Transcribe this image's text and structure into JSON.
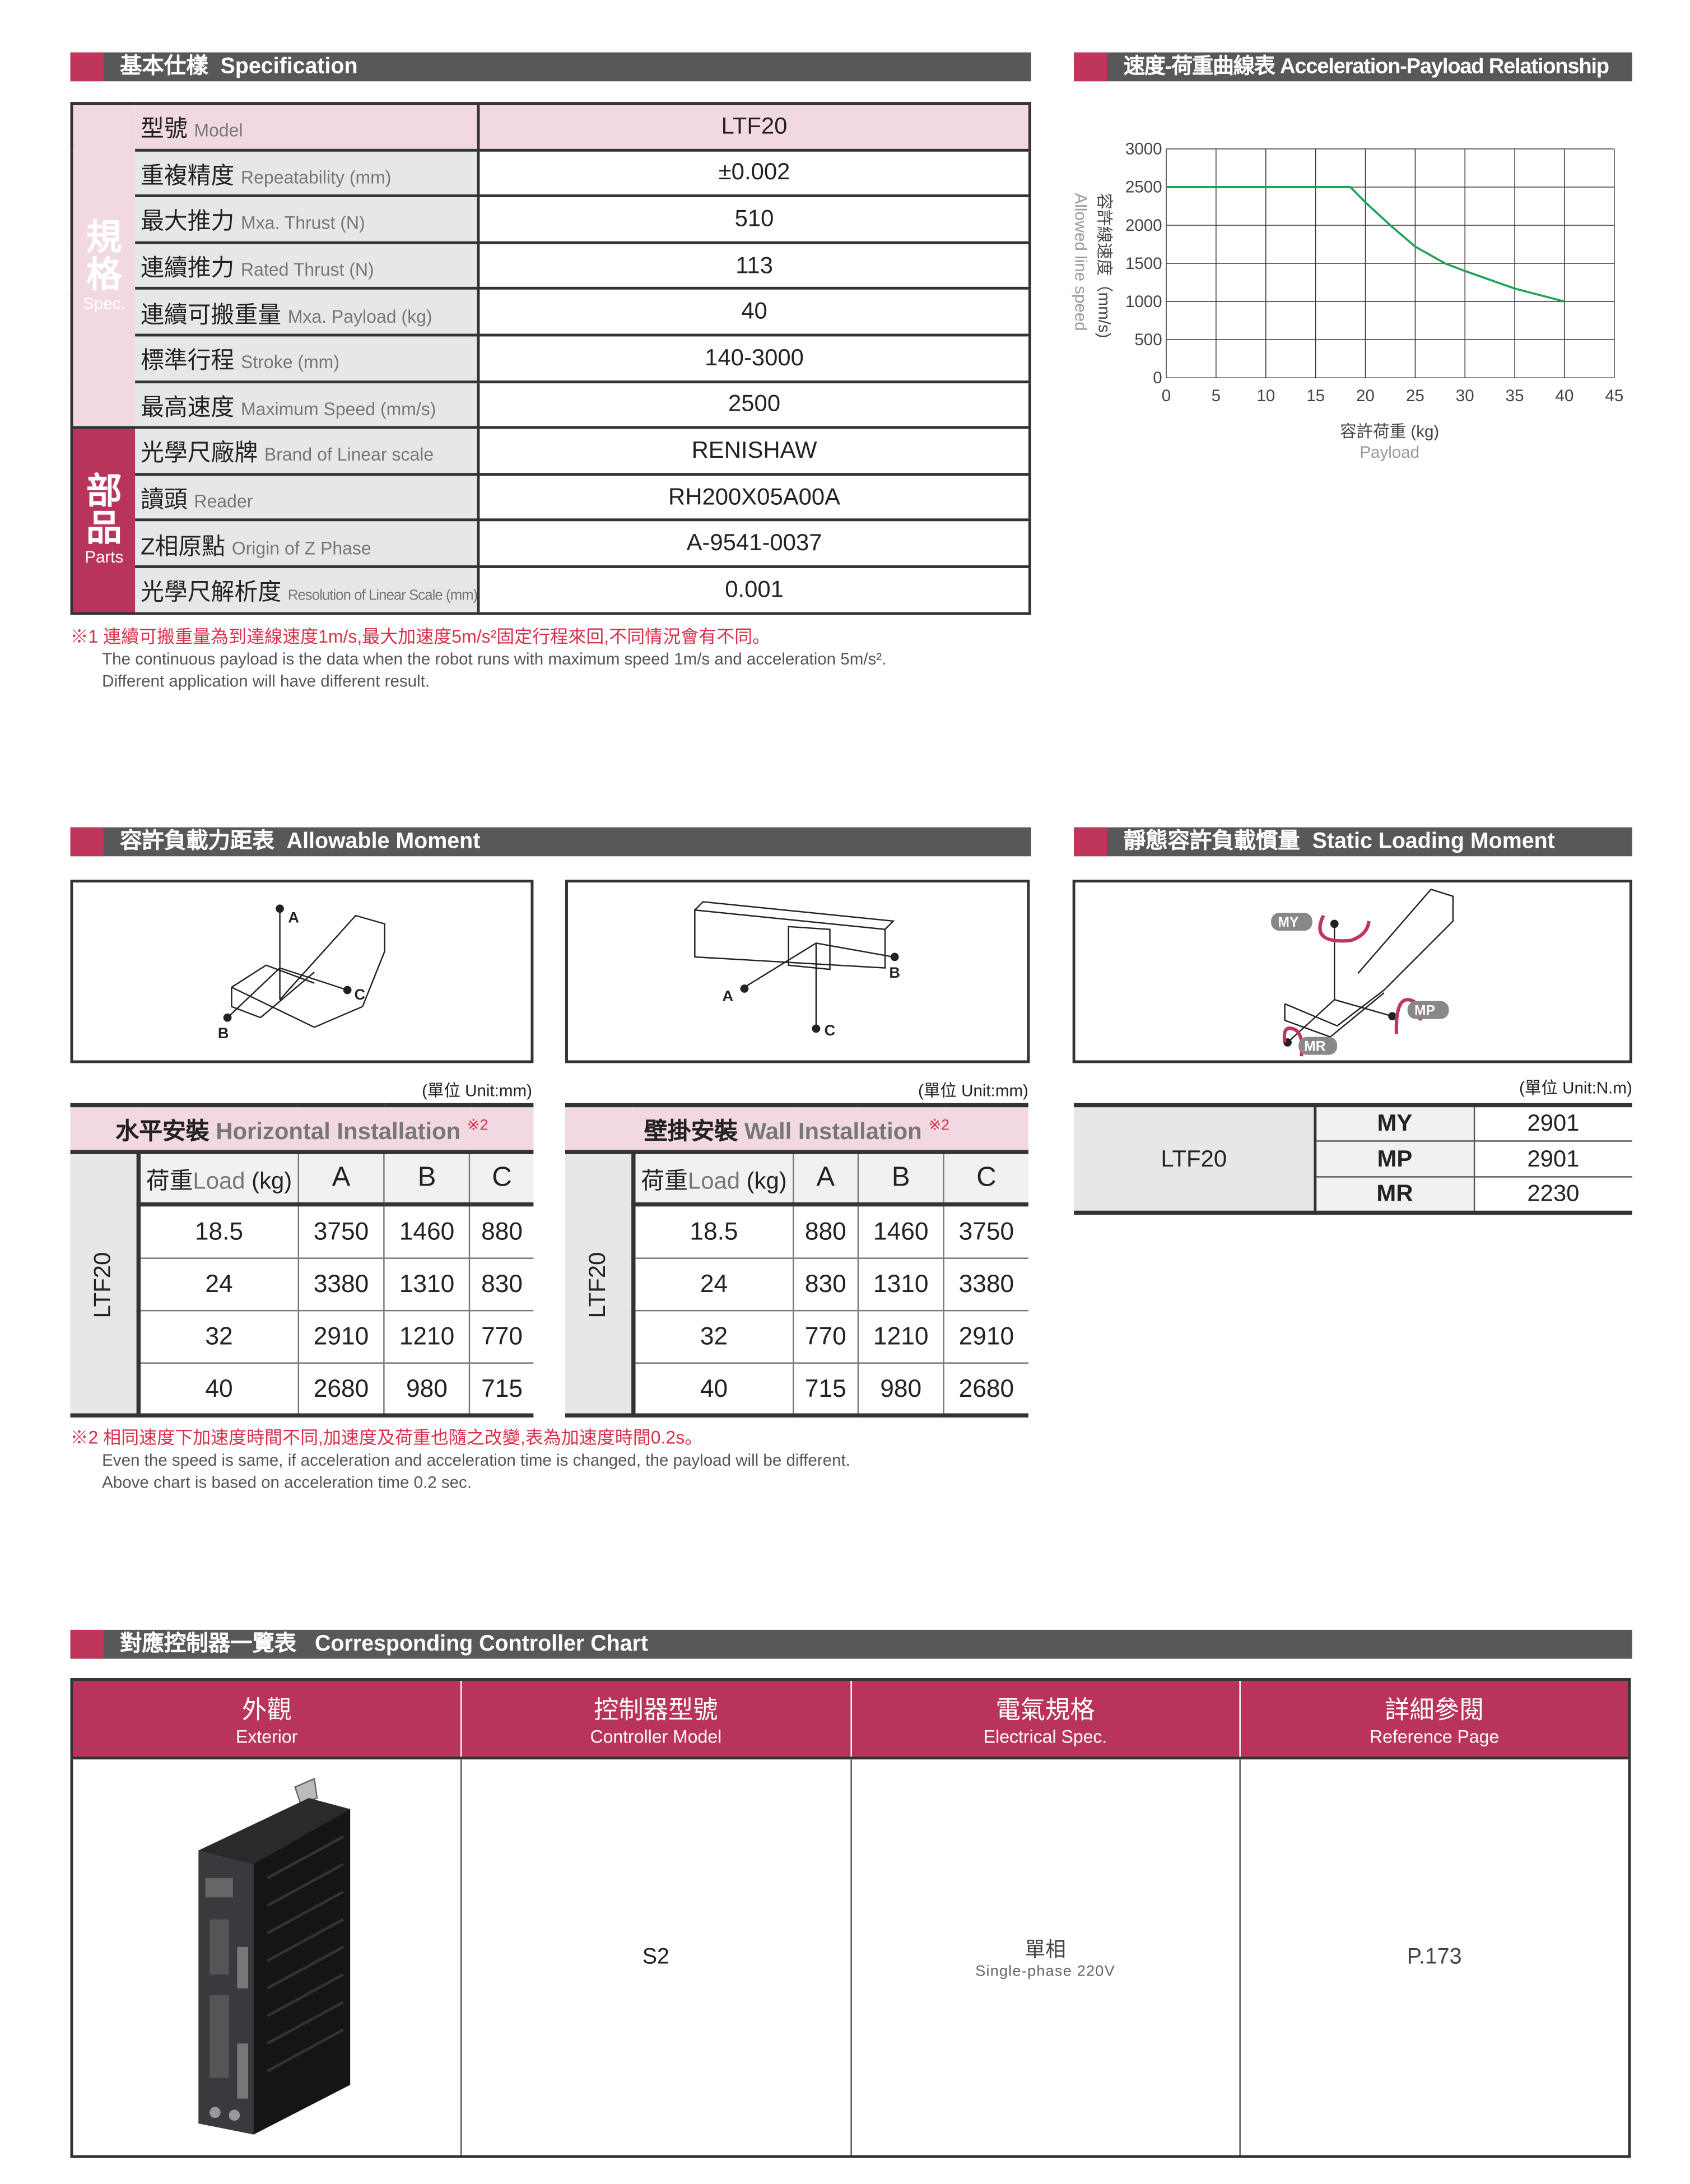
{
  "spec_section": {
    "title_zh": "基本仕樣",
    "title_en": "Specification"
  },
  "spec": {
    "group_spec": {
      "zh1": "規",
      "zh2": "格",
      "en": "Spec."
    },
    "group_parts": {
      "zh1": "部",
      "zh2": "品",
      "en": "Parts"
    },
    "rows": [
      {
        "zh": "型號",
        "en": "Model",
        "value": "LTF20"
      },
      {
        "zh": "重複精度",
        "en": "Repeatability (mm)",
        "value": "±0.002"
      },
      {
        "zh": "最大推力",
        "en": "Mxa. Thrust (N)",
        "value": "510"
      },
      {
        "zh": "連續推力",
        "en": "Rated Thrust (N)",
        "value": "113"
      },
      {
        "zh": "連續可搬重量",
        "en": "Mxa. Payload (kg)",
        "value": "40"
      },
      {
        "zh": "標準行程",
        "en": "Stroke (mm)",
        "value": "140-3000"
      },
      {
        "zh": "最高速度",
        "en": "Maximum Speed (mm/s)",
        "value": "2500"
      },
      {
        "zh": "光學尺廠牌",
        "en": "Brand of Linear scale",
        "value": "RENISHAW"
      },
      {
        "zh": "讀頭",
        "en": "Reader",
        "value": "RH200X05A00A"
      },
      {
        "zh": "Z相原點",
        "en": "Origin of Z Phase",
        "value": "A-9541-0037"
      },
      {
        "zh": "光學尺解析度",
        "en": "Resolution of Linear Scale (mm)",
        "value": "0.001"
      }
    ],
    "note_zh": "※1 連續可搬重量為到達線速度1m/s,最大加速度5m/s²固定行程來回,不同情況會有不同。",
    "note_en1": "The continuous payload is the data when the robot runs with maximum speed 1m/s and acceleration 5m/s².",
    "note_en2": "Different application will have different result."
  },
  "chart_section": {
    "title_zh": "速度-荷重曲線表",
    "title_en": "Acceleration-Payload Relationship"
  },
  "chart_data": {
    "type": "line",
    "xlabel": "容許荷重 (kg)",
    "xlabel_en": "Payload",
    "ylabel": "容許線速度（mm/s)",
    "ylabel_en": "Allowed line speed",
    "xlim": [
      0,
      45
    ],
    "ylim": [
      0,
      3000
    ],
    "xticks": [
      0,
      5,
      10,
      15,
      20,
      25,
      30,
      35,
      40,
      45
    ],
    "yticks": [
      0,
      500,
      1000,
      1500,
      2000,
      2500,
      3000
    ],
    "grid": true,
    "color": "#1fa055",
    "x": [
      0,
      18.5,
      20,
      22.5,
      25,
      28,
      30,
      35,
      40
    ],
    "y": [
      2500,
      2500,
      2300,
      2000,
      1720,
      1500,
      1400,
      1170,
      1000
    ]
  },
  "moment_section": {
    "title_zh": "容許負載力距表",
    "title_en": "Allowable Moment"
  },
  "static_section": {
    "title_zh": "靜態容許負載慣量",
    "title_en": "Static Loading Moment"
  },
  "diagram_labels": {
    "a": "A",
    "b": "B",
    "c": "C",
    "my": "MY",
    "mp": "MP",
    "mr": "MR"
  },
  "unit_mm": "(單位  Unit:mm)",
  "unit_nm": "(單位  Unit:N.m)",
  "horizontal": {
    "title_zh": "水平安裝",
    "title_en": "Horizontal Installation",
    "mark": "※2",
    "model": "LTF20",
    "headers": [
      "荷重",
      "Load",
      "(kg)",
      "A",
      "B",
      "C"
    ],
    "rows": [
      [
        "18.5",
        "3750",
        "1460",
        "880"
      ],
      [
        "24",
        "3380",
        "1310",
        "830"
      ],
      [
        "32",
        "2910",
        "1210",
        "770"
      ],
      [
        "40",
        "2680",
        "980",
        "715"
      ]
    ]
  },
  "wall": {
    "title_zh": "壁掛安裝",
    "title_en": "Wall Installation",
    "mark": "※2",
    "model": "LTF20",
    "headers": [
      "荷重",
      "Load",
      "(kg)",
      "A",
      "B",
      "C"
    ],
    "rows": [
      [
        "18.5",
        "880",
        "1460",
        "3750"
      ],
      [
        "24",
        "830",
        "1310",
        "3380"
      ],
      [
        "32",
        "770",
        "1210",
        "2910"
      ],
      [
        "40",
        "715",
        "980",
        "2680"
      ]
    ]
  },
  "static": {
    "model": "LTF20",
    "rows": [
      [
        "MY",
        "2901"
      ],
      [
        "MP",
        "2901"
      ],
      [
        "MR",
        "2230"
      ]
    ]
  },
  "moment_note": {
    "zh": "※2 相同速度下加速度時間不同,加速度及荷重也隨之改變,表為加速度時間0.2s。",
    "en1": "Even the speed is same, if acceleration and acceleration time is changed, the payload will be different.",
    "en2": "Above chart is based on acceleration time 0.2 sec."
  },
  "controller_section": {
    "title_zh": "對應控制器一覽表",
    "title_en": "Corresponding Controller Chart"
  },
  "controller": {
    "headers": [
      {
        "zh": "外觀",
        "en": "Exterior"
      },
      {
        "zh": "控制器型號",
        "en": "Controller Model"
      },
      {
        "zh": "電氣規格",
        "en": "Electrical Spec."
      },
      {
        "zh": "詳細參閱",
        "en": "Reference Page"
      }
    ],
    "model": "S2",
    "spec_zh": "單相",
    "spec_en": "Single-phase 220V",
    "page": "P.173"
  }
}
